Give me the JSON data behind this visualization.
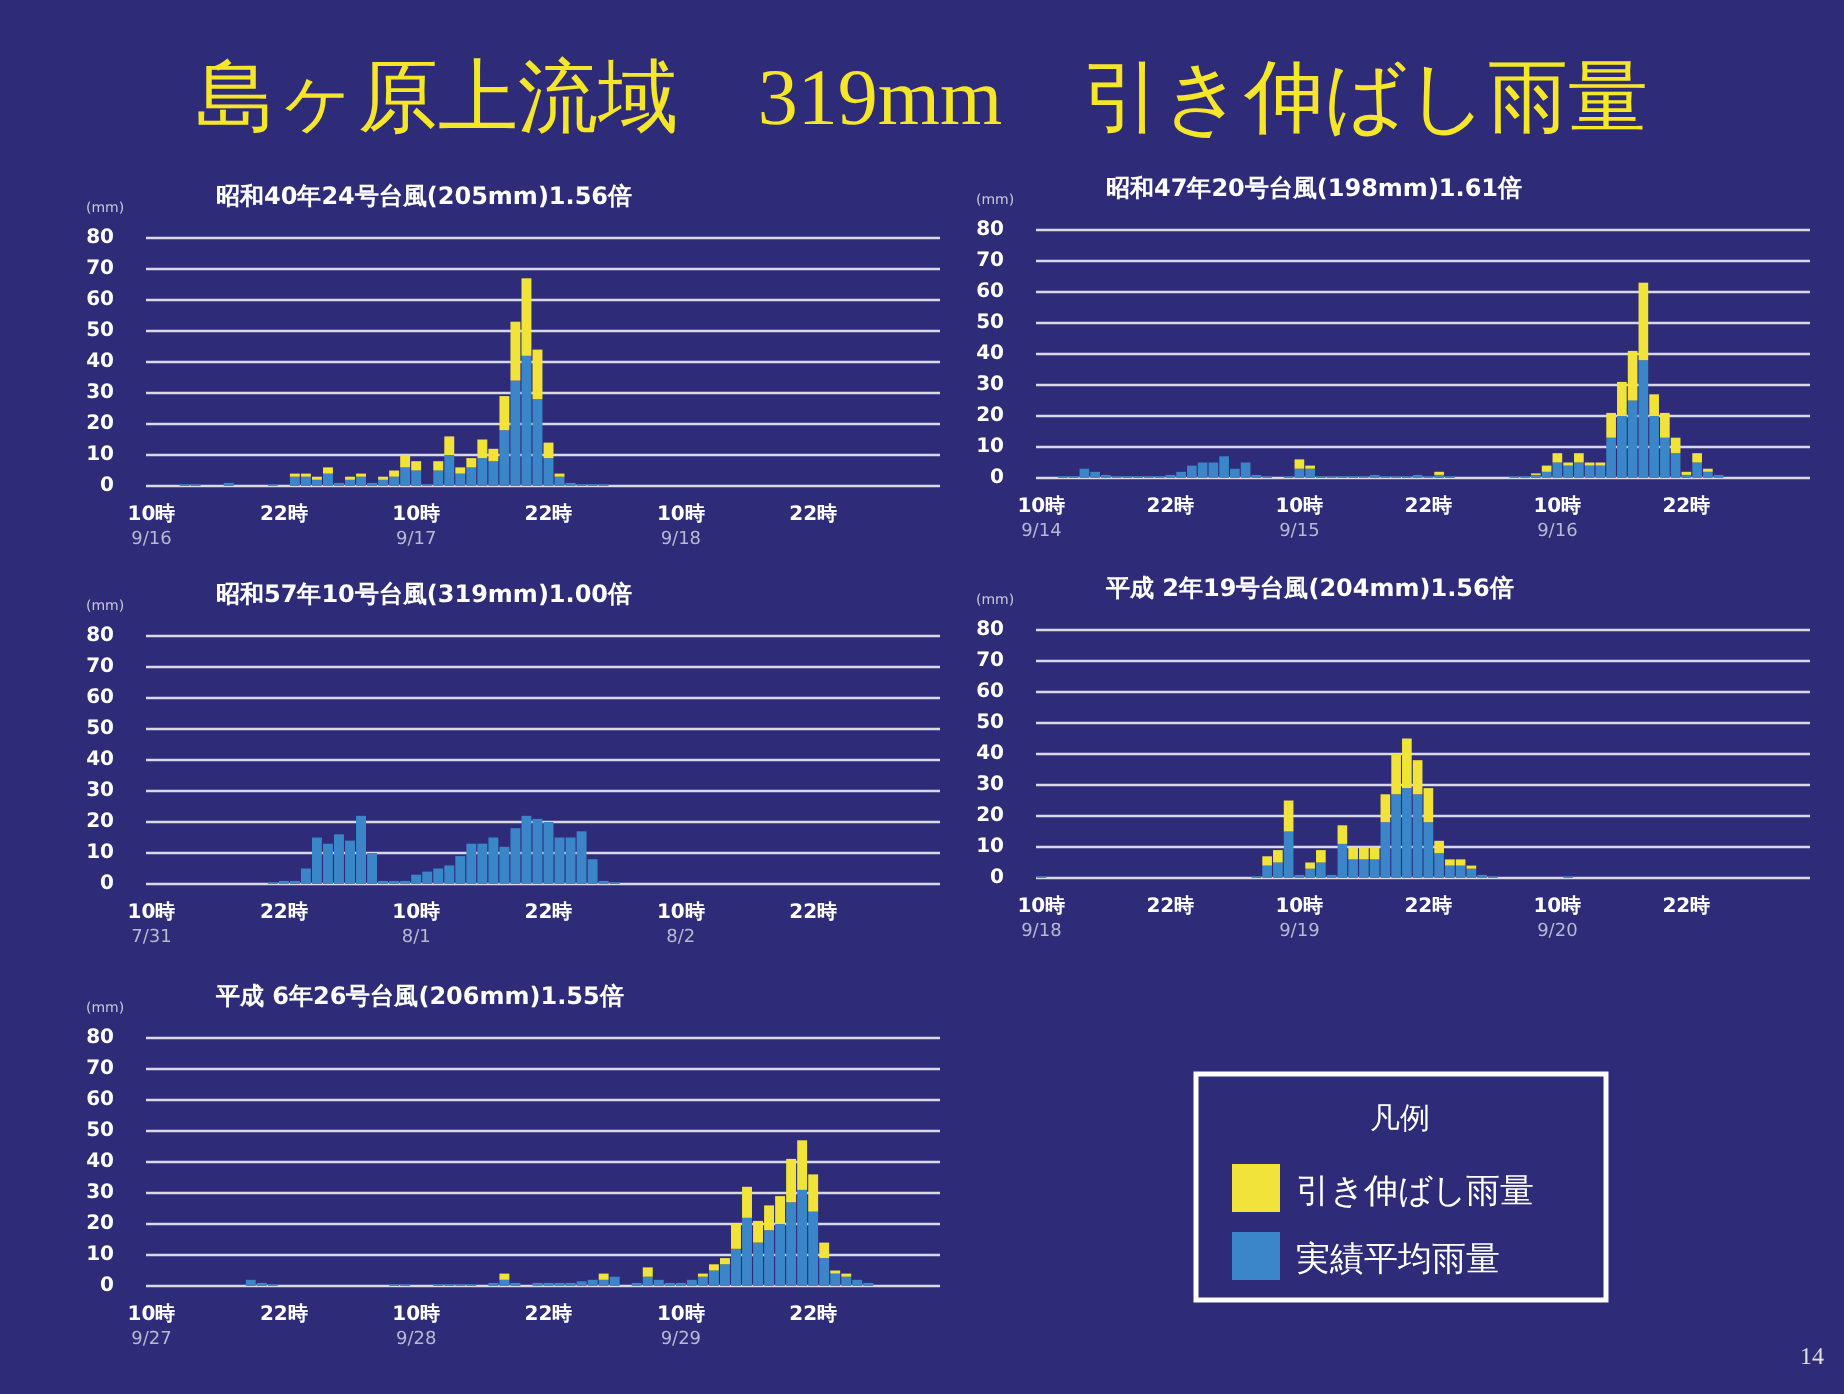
{
  "chart_data": [
    {
      "type": "bar",
      "title": "昭和40年24号台風(205mm)1.56倍",
      "ylabel": "(mm)",
      "stacked": true,
      "ylim": [
        0,
        80
      ],
      "yticks": [
        0,
        10,
        20,
        30,
        40,
        50,
        60,
        70,
        80
      ],
      "grid": "y",
      "annotations": [
        "島ヶ原上流域　319mm　引き伸ばし雨量"
      ],
      "categories": [
        "10時\n9/16",
        null,
        null,
        null,
        null,
        null,
        null,
        null,
        null,
        null,
        null,
        null,
        "22時",
        null,
        null,
        null,
        null,
        null,
        null,
        null,
        null,
        null,
        null,
        null,
        "10時\n9/17",
        null,
        null,
        null,
        null,
        null,
        null,
        null,
        null,
        null,
        null,
        null,
        "22時",
        null,
        null,
        null,
        null,
        null,
        null,
        null,
        null,
        null,
        null,
        null,
        "10時\n9/18",
        null,
        null,
        null,
        null,
        null,
        null,
        null,
        null,
        null,
        null,
        null,
        "22時",
        null,
        null,
        null,
        null,
        null,
        null,
        null,
        null,
        null,
        null,
        null
      ],
      "series": [
        {
          "color": "#3a86c8",
          "values": [
            0,
            0,
            0,
            0.5,
            0.5,
            0,
            0,
            1,
            0,
            0,
            0,
            0.5,
            0,
            3,
            3,
            2,
            4,
            1,
            2,
            3,
            1,
            2,
            3,
            6,
            5,
            0.5,
            5,
            10,
            4,
            6,
            9,
            8,
            18,
            34,
            42,
            28,
            9,
            3,
            1,
            0.5,
            0.5,
            0.5,
            0,
            0,
            0,
            0,
            0,
            0,
            0,
            0,
            0,
            0,
            0,
            0,
            0,
            0,
            0,
            0,
            0,
            0,
            0,
            0,
            0,
            0,
            0,
            0,
            0,
            0,
            0,
            0,
            0,
            0
          ]
        },
        {
          "color": "#f2e33a",
          "values": [
            0,
            0,
            0,
            0,
            0,
            0,
            0,
            0,
            0,
            0,
            0,
            0,
            0,
            1,
            1,
            1,
            2,
            0,
            1,
            1,
            0,
            1,
            2,
            4,
            3,
            0,
            3,
            6,
            2,
            3,
            6,
            4,
            11,
            19,
            25,
            16,
            5,
            1,
            0,
            0,
            0,
            0,
            0,
            0,
            0,
            0,
            0,
            0,
            0,
            0,
            0,
            0,
            0,
            0,
            0,
            0,
            0,
            0,
            0,
            0,
            0,
            0,
            0,
            0,
            0,
            0,
            0,
            0,
            0,
            0,
            0,
            0
          ]
        }
      ]
    },
    {
      "type": "bar",
      "title": "昭和47年20号台風(198mm)1.61倍",
      "ylabel": "(mm)",
      "stacked": true,
      "ylim": [
        0,
        80
      ],
      "yticks": [
        0,
        10,
        20,
        30,
        40,
        50,
        60,
        70,
        80
      ],
      "grid": "y",
      "categories": [
        "10時\n9/14",
        null,
        null,
        null,
        null,
        null,
        null,
        null,
        null,
        null,
        null,
        null,
        "22時",
        null,
        null,
        null,
        null,
        null,
        null,
        null,
        null,
        null,
        null,
        null,
        "10時\n9/15",
        null,
        null,
        null,
        null,
        null,
        null,
        null,
        null,
        null,
        null,
        null,
        "22時",
        null,
        null,
        null,
        null,
        null,
        null,
        null,
        null,
        null,
        null,
        null,
        "10時\n9/16",
        null,
        null,
        null,
        null,
        null,
        null,
        null,
        null,
        null,
        null,
        null,
        "22時",
        null,
        null,
        null,
        null,
        null,
        null,
        null,
        null,
        null,
        null,
        null
      ],
      "series": [
        {
          "color": "#3a86c8",
          "values": [
            0,
            0,
            0.5,
            0.5,
            3,
            2,
            1,
            0.5,
            0.5,
            0.5,
            0.5,
            0.5,
            1,
            2,
            4,
            5,
            5,
            7,
            3,
            5,
            1,
            0.5,
            0,
            0.5,
            3,
            3,
            0.5,
            0.5,
            0.5,
            0.5,
            0.5,
            1,
            0.5,
            0.5,
            0.5,
            1,
            0.5,
            1,
            0.5,
            0,
            0,
            0,
            0,
            0,
            0.5,
            0.5,
            1,
            2,
            5,
            4,
            5,
            4,
            4,
            13,
            20,
            25,
            38,
            20,
            13,
            8,
            1,
            5,
            2,
            1,
            0,
            0,
            0,
            0,
            0,
            0,
            0,
            0
          ]
        },
        {
          "color": "#f2e33a",
          "values": [
            0,
            0,
            0,
            0,
            0,
            0,
            0,
            0,
            0,
            0,
            0,
            0,
            0,
            0,
            0,
            0,
            0,
            0,
            0,
            0,
            0,
            0,
            0,
            0,
            3,
            1,
            0,
            0,
            0,
            0,
            0,
            0,
            0,
            0,
            0,
            0,
            0,
            1,
            0,
            0,
            0,
            0,
            0,
            0,
            0,
            0,
            0.5,
            2,
            3,
            1,
            3,
            1,
            1,
            8,
            11,
            16,
            25,
            7,
            8,
            5,
            1,
            3,
            1,
            0,
            0,
            0,
            0,
            0,
            0,
            0,
            0,
            0
          ]
        }
      ]
    },
    {
      "type": "bar",
      "title": "昭和57年10号台風(319mm)1.00倍",
      "ylabel": "(mm)",
      "stacked": true,
      "ylim": [
        0,
        80
      ],
      "yticks": [
        0,
        10,
        20,
        30,
        40,
        50,
        60,
        70,
        80
      ],
      "grid": "y",
      "categories": [
        "10時\n7/31",
        null,
        null,
        null,
        null,
        null,
        null,
        null,
        null,
        null,
        null,
        null,
        "22時",
        null,
        null,
        null,
        null,
        null,
        null,
        null,
        null,
        null,
        null,
        null,
        "10時\n8/1",
        null,
        null,
        null,
        null,
        null,
        null,
        null,
        null,
        null,
        null,
        null,
        "22時",
        null,
        null,
        null,
        null,
        null,
        null,
        null,
        null,
        null,
        null,
        null,
        "10時\n8/2",
        null,
        null,
        null,
        null,
        null,
        null,
        null,
        null,
        null,
        null,
        null,
        "22時",
        null,
        null,
        null,
        null,
        null,
        null,
        null,
        null,
        null,
        null,
        null
      ],
      "series": [
        {
          "color": "#3a86c8",
          "values": [
            0,
            0,
            0,
            0,
            0,
            0,
            0,
            0,
            0,
            0,
            0,
            0.5,
            1,
            1,
            5,
            15,
            13,
            16,
            14,
            22,
            10,
            1,
            1,
            1,
            3,
            4,
            5,
            6,
            9,
            13,
            13,
            15,
            12,
            18,
            22,
            21,
            20,
            15,
            15,
            17,
            8,
            1,
            0.5,
            0,
            0,
            0,
            0,
            0,
            0,
            0,
            0,
            0,
            0,
            0,
            0,
            0,
            0,
            0,
            0,
            0,
            0,
            0,
            0,
            0,
            0,
            0,
            0,
            0,
            0,
            0,
            0,
            0
          ]
        }
      ]
    },
    {
      "type": "bar",
      "title": "平成 2年19号台風(204mm)1.56倍",
      "ylabel": "(mm)",
      "stacked": true,
      "ylim": [
        0,
        80
      ],
      "yticks": [
        0,
        10,
        20,
        30,
        40,
        50,
        60,
        70,
        80
      ],
      "grid": "y",
      "categories": [
        "10時\n9/18",
        null,
        null,
        null,
        null,
        null,
        null,
        null,
        null,
        null,
        null,
        null,
        "22時",
        null,
        null,
        null,
        null,
        null,
        null,
        null,
        null,
        null,
        null,
        null,
        "10時\n9/19",
        null,
        null,
        null,
        null,
        null,
        null,
        null,
        null,
        null,
        null,
        null,
        "22時",
        null,
        null,
        null,
        null,
        null,
        null,
        null,
        null,
        null,
        null,
        null,
        "10時\n9/20",
        null,
        null,
        null,
        null,
        null,
        null,
        null,
        null,
        null,
        null,
        null,
        "22時",
        null,
        null,
        null,
        null,
        null,
        null,
        null,
        null,
        null,
        null,
        null
      ],
      "series": [
        {
          "color": "#3a86c8",
          "values": [
            0.5,
            0,
            0,
            0,
            0,
            0,
            0,
            0,
            0,
            0,
            0,
            0,
            0,
            0,
            0,
            0,
            0,
            0,
            0,
            0,
            0.5,
            4,
            5,
            15,
            1,
            3,
            5,
            1,
            11,
            6,
            6,
            6,
            18,
            27,
            29,
            27,
            18,
            8,
            4,
            4,
            3,
            1,
            0.5,
            0,
            0,
            0,
            0,
            0,
            0,
            0.5,
            0,
            0,
            0,
            0,
            0,
            0,
            0,
            0,
            0,
            0,
            0,
            0,
            0,
            0,
            0,
            0,
            0,
            0,
            0,
            0,
            0,
            0
          ]
        },
        {
          "color": "#f2e33a",
          "values": [
            0,
            0,
            0,
            0,
            0,
            0,
            0,
            0,
            0,
            0,
            0,
            0,
            0,
            0,
            0,
            0,
            0,
            0,
            0,
            0,
            0,
            3,
            4,
            10,
            0,
            2,
            4,
            0,
            6,
            4,
            4,
            4,
            9,
            13,
            16,
            11,
            11,
            4,
            2,
            2,
            1,
            0,
            0,
            0,
            0,
            0,
            0,
            0,
            0,
            0,
            0,
            0,
            0,
            0,
            0,
            0,
            0,
            0,
            0,
            0,
            0,
            0,
            0,
            0,
            0,
            0,
            0,
            0,
            0,
            0,
            0,
            0
          ]
        }
      ]
    },
    {
      "type": "bar",
      "title": "平成 6年26号台風(206mm)1.55倍",
      "ylabel": "(mm)",
      "stacked": true,
      "ylim": [
        0,
        80
      ],
      "yticks": [
        0,
        10,
        20,
        30,
        40,
        50,
        60,
        70,
        80
      ],
      "grid": "y",
      "legend": "right",
      "legend_title": "凡例",
      "annotations": [
        "14"
      ],
      "categories": [
        "10時\n9/27",
        null,
        null,
        null,
        null,
        null,
        null,
        null,
        null,
        null,
        null,
        null,
        "22時",
        null,
        null,
        null,
        null,
        null,
        null,
        null,
        null,
        null,
        null,
        null,
        "10時\n9/28",
        null,
        null,
        null,
        null,
        null,
        null,
        null,
        null,
        null,
        null,
        null,
        "22時",
        null,
        null,
        null,
        null,
        null,
        null,
        null,
        null,
        null,
        null,
        null,
        "10時\n9/29",
        null,
        null,
        null,
        null,
        null,
        null,
        null,
        null,
        null,
        null,
        null,
        "22時",
        null,
        null,
        null,
        null,
        null,
        null,
        null,
        null,
        null,
        null,
        null
      ],
      "series": [
        {
          "name": "実績平均雨量",
          "color": "#3a86c8",
          "values": [
            0,
            0,
            0,
            0,
            0,
            0,
            0,
            0,
            0,
            2,
            1,
            0.5,
            0,
            0,
            0,
            0,
            0,
            0,
            0,
            0,
            0,
            0,
            0.5,
            0.5,
            0,
            0,
            0.5,
            0.5,
            0.5,
            0.5,
            0,
            1,
            2,
            1,
            0,
            1,
            1,
            1,
            1,
            1.5,
            2,
            2,
            3,
            0,
            1,
            3,
            2,
            1,
            1,
            2,
            3,
            5,
            7,
            12,
            22,
            14,
            18,
            20,
            27,
            31,
            24,
            9,
            4,
            3,
            2,
            1,
            0,
            0,
            0,
            0,
            0,
            0
          ]
        },
        {
          "name": "引き伸ばし雨量",
          "color": "#f2e33a",
          "values": [
            0,
            0,
            0,
            0,
            0,
            0,
            0,
            0,
            0,
            0,
            0,
            0,
            0,
            0,
            0,
            0,
            0,
            0,
            0,
            0,
            0,
            0,
            0,
            0,
            0,
            0,
            0,
            0,
            0,
            0,
            0,
            0,
            2,
            0,
            0,
            0,
            0,
            0,
            0,
            0,
            0,
            2,
            0,
            0,
            0,
            3,
            0,
            0,
            0,
            0,
            1,
            2,
            2,
            8,
            10,
            7,
            8,
            9,
            14,
            16,
            12,
            5,
            1,
            1,
            0,
            0,
            0,
            0,
            0,
            0,
            0,
            0
          ]
        }
      ]
    }
  ]
}
